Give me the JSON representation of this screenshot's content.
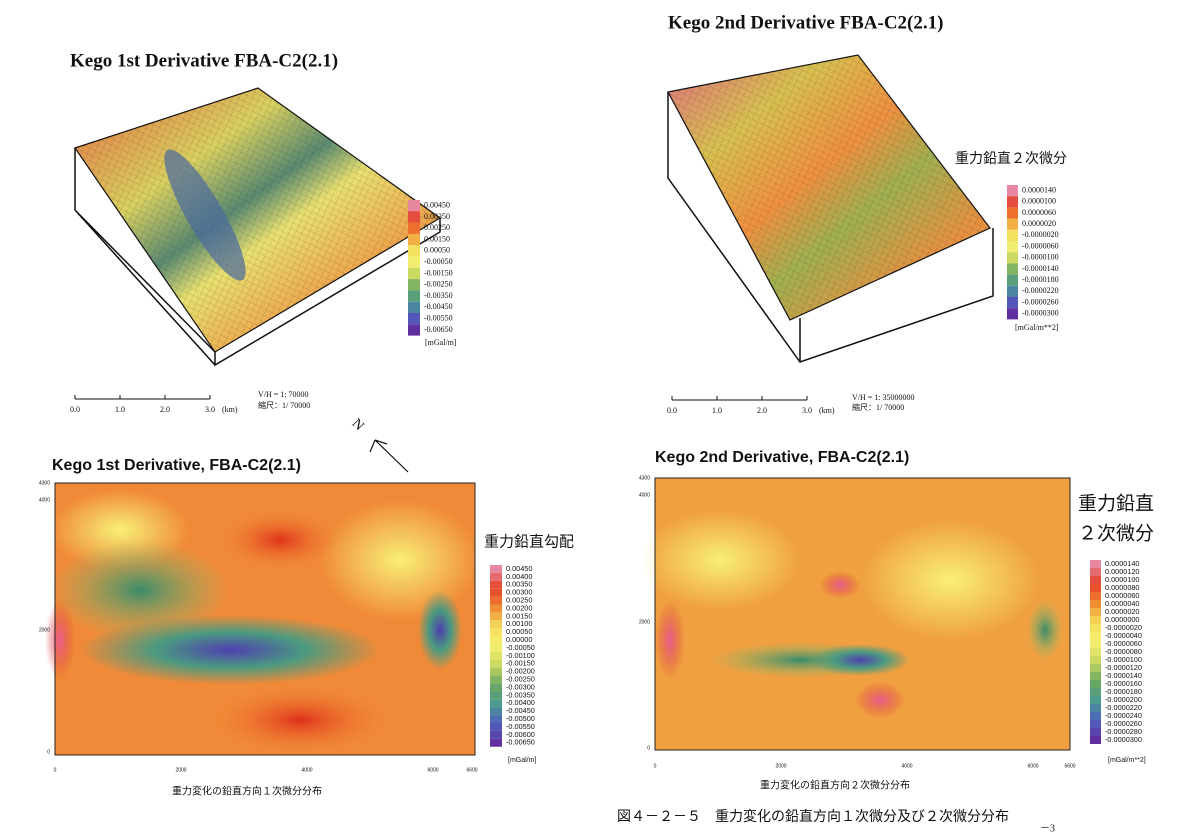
{
  "top_left": {
    "title": "Kego 1st Derivative FBA-C2(2.1)",
    "legend": [
      "0.00450",
      "0.00350",
      "0.00250",
      "0.00150",
      "0.00050",
      "-0.00050",
      "-0.00150",
      "-0.00250",
      "-0.00350",
      "-0.00450",
      "-0.00550",
      "-0.00650"
    ],
    "unit": "[mGal/m]",
    "scale": [
      "0.0",
      "1.0",
      "2.0",
      "3.0"
    ],
    "scale_unit": "(km)",
    "vh": "V/H = 1:    70000",
    "ratio": "縮尺：1/ 70000"
  },
  "top_right": {
    "title": "Kego 2nd Derivative FBA-C2(2.1)",
    "label": "重力鉛直２次微分",
    "legend": [
      "0.0000140",
      "0.0000100",
      "0.0000060",
      "0.0000020",
      "-0.0000020",
      "-0.0000060",
      "-0.0000100",
      "-0.0000140",
      "-0.0000180",
      "-0.0000220",
      "-0.0000260",
      "-0.0000300"
    ],
    "unit": "[mGal/m**2]",
    "scale": [
      "0.0",
      "1.0",
      "2.0",
      "3.0"
    ],
    "scale_unit": "(km)",
    "vh": "V/H = 1:    35000000",
    "ratio": "縮尺：1/ 70000"
  },
  "bottom_left": {
    "title": "Kego 1st Derivative, FBA-C2(2.1)",
    "north": "N",
    "label": "重力鉛直勾配",
    "legend": [
      "0.00450",
      "0.00400",
      "0.00350",
      "0.00300",
      "0.00250",
      "0.00200",
      "0.00150",
      "0.00100",
      "0.00050",
      "0.00000",
      "-0.00050",
      "-0.00100",
      "-0.00150",
      "-0.00200",
      "-0.00250",
      "-0.00300",
      "-0.00350",
      "-0.00400",
      "-0.00450",
      "-0.00500",
      "-0.00550",
      "-0.00600",
      "-0.00650"
    ],
    "unit": "[mGal/m]",
    "y_axis": [
      "4300",
      "4000",
      "2000",
      "0"
    ],
    "x_axis": [
      "0",
      "2000",
      "4000",
      "6000",
      "6600"
    ],
    "caption": "重力変化の鉛直方向１次微分分布"
  },
  "bottom_right": {
    "title": "Kego 2nd Derivative, FBA-C2(2.1)",
    "label": [
      "重力鉛直",
      "２次微分"
    ],
    "legend": [
      "0.0000140",
      "0.0000120",
      "0.0000100",
      "0.0000080",
      "0.0000060",
      "0.0000040",
      "0.0000020",
      "0.0000000",
      "-0.0000020",
      "-0.0000040",
      "-0.0000060",
      "-0.0000080",
      "-0.0000100",
      "-0.0000120",
      "-0.0000140",
      "-0.0000160",
      "-0.0000180",
      "-0.0000200",
      "-0.0000220",
      "-0.0000240",
      "-0.0000260",
      "-0.0000280",
      "-0.0000300"
    ],
    "unit": "[mGal/m**2]",
    "y_axis": [
      "4300",
      "4000",
      "2000",
      "0"
    ],
    "x_axis": [
      "0",
      "2000",
      "4000",
      "6000",
      "6600"
    ],
    "caption": "重力変化の鉛直方向２次微分分布"
  },
  "figure_caption": "図４－２－５　重力変化の鉛直方向１次微分及び２次微分分布",
  "page_number": "－3"
}
